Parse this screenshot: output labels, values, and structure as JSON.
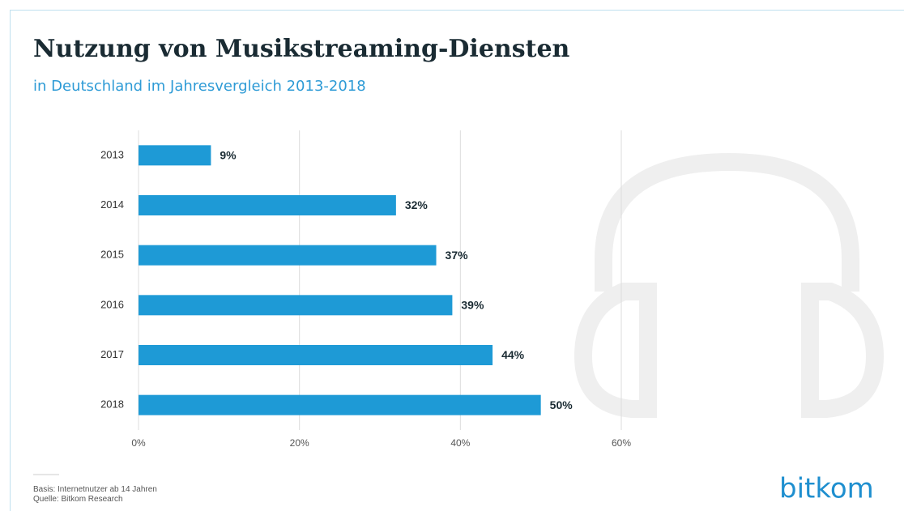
{
  "chart_data": {
    "type": "bar",
    "orientation": "horizontal",
    "title": "Nutzung von Musikstreaming-Diensten",
    "subtitle": "in Deutschland im Jahresvergleich 2013-2018",
    "categories": [
      "2013",
      "2014",
      "2015",
      "2016",
      "2017",
      "2018"
    ],
    "values": [
      9,
      32,
      37,
      39,
      44,
      50
    ],
    "value_labels": [
      "9%",
      "32%",
      "37%",
      "39%",
      "44%",
      "50%"
    ],
    "color": "#1e9ad6",
    "xlim": [
      0,
      60
    ],
    "xticks": [
      {
        "value": 0,
        "label": "0%"
      },
      {
        "value": 20,
        "label": "20%"
      },
      {
        "value": 40,
        "label": "40%"
      },
      {
        "value": 60,
        "label": "60%"
      }
    ],
    "grid": true,
    "footnotes": [
      "Basis: Internetnutzer ab 14 Jahren",
      "Quelle: Bitkom Research"
    ],
    "logo": "bitkom"
  }
}
